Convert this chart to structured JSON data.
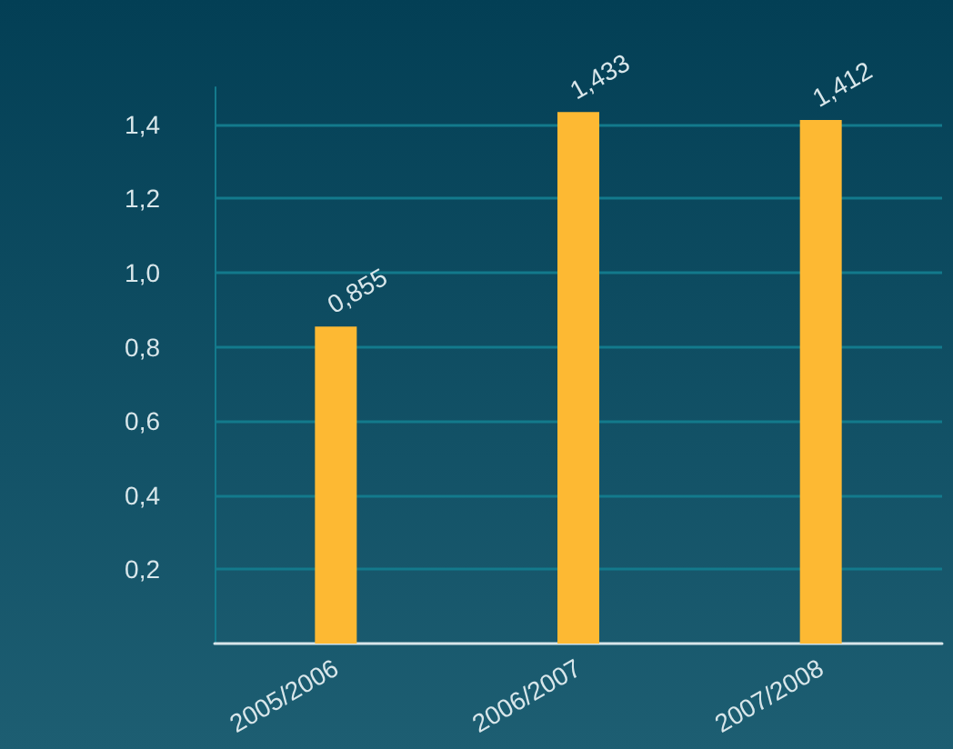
{
  "chart_data": {
    "type": "bar",
    "categories": [
      "2005/2006",
      "2006/2007",
      "2007/2008"
    ],
    "values": [
      0.855,
      1.433,
      1.412
    ],
    "color": "#fdb933",
    "value_labels": [
      "0,855",
      "1,433",
      "1,412"
    ],
    "ylim": [
      0,
      1.5
    ],
    "yticks": [
      {
        "value": 0.2,
        "label": "0,2"
      },
      {
        "value": 0.4,
        "label": "0,4"
      },
      {
        "value": 0.6,
        "label": "0,6"
      },
      {
        "value": 0.8,
        "label": "0,8"
      },
      {
        "value": 1.0,
        "label": "1,0"
      },
      {
        "value": 1.2,
        "label": "1,2"
      },
      {
        "value": 1.4,
        "label": "1,4"
      }
    ],
    "grid": "y"
  }
}
